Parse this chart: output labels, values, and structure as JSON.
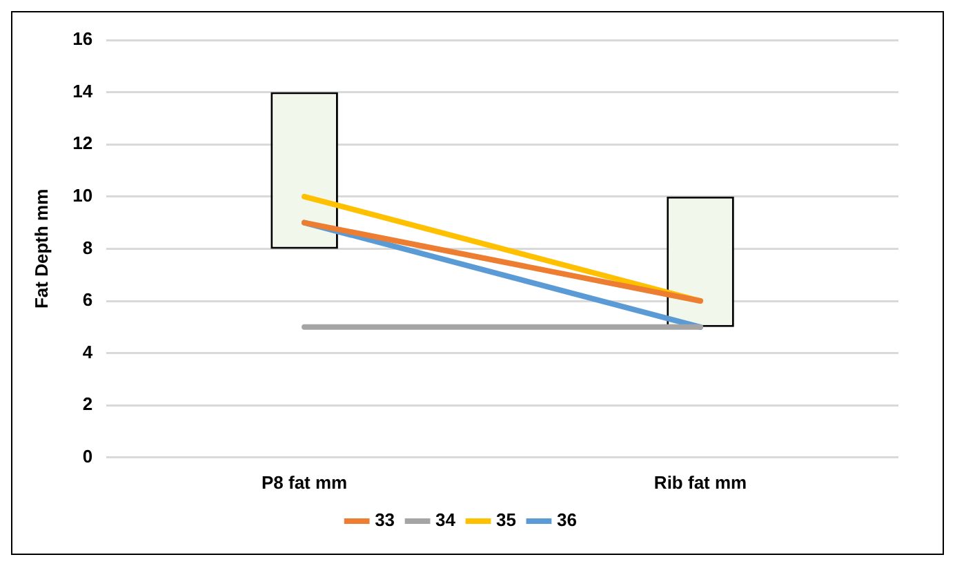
{
  "chart_data": {
    "type": "line",
    "ylabel": "Fat Depth mm",
    "categories": [
      "P8 fat mm",
      "Rib fat mm"
    ],
    "series": [
      {
        "type": "bar",
        "color": "#f2f7ec",
        "base": [
          8,
          5
        ],
        "values": [
          6,
          5
        ]
      },
      {
        "name": "33",
        "color": "#ed7d31",
        "values": [
          9,
          6
        ]
      },
      {
        "name": "34",
        "color": "#a5a5a5",
        "values": [
          5,
          5
        ]
      },
      {
        "name": "35",
        "color": "#ffc000",
        "values": [
          10,
          6
        ]
      },
      {
        "name": "36",
        "color": "#5b9bd5",
        "values": [
          9,
          5
        ]
      }
    ],
    "ylim": [
      0,
      16
    ],
    "yticks": [
      0,
      2,
      4,
      6,
      8,
      10,
      12,
      14,
      16
    ],
    "grid": "y",
    "legend": "bottom",
    "marker": "none",
    "line_style": "solid"
  }
}
